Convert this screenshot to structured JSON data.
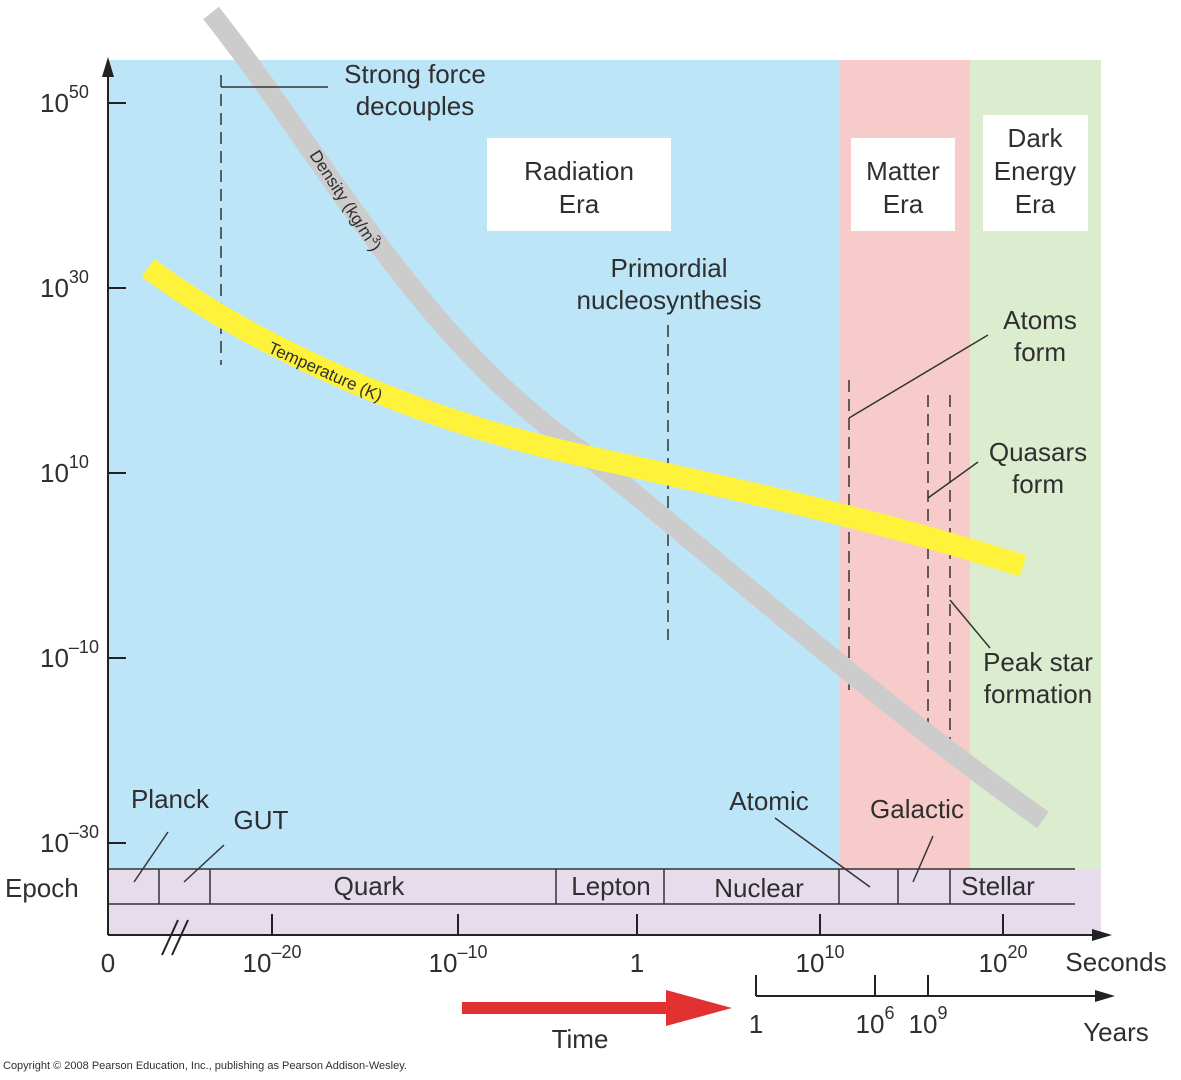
{
  "chart_data": {
    "type": "line",
    "title": "",
    "y_ticks": [
      {
        "base": "10",
        "exp": "50"
      },
      {
        "base": "10",
        "exp": "30"
      },
      {
        "base": "10",
        "exp": "10"
      },
      {
        "base": "10",
        "exp": "–10"
      },
      {
        "base": "10",
        "exp": "–30"
      }
    ],
    "x_seconds_ticks": [
      {
        "base": "0",
        "exp": ""
      },
      {
        "base": "10",
        "exp": "–20"
      },
      {
        "base": "10",
        "exp": "–10"
      },
      {
        "base": "1",
        "exp": ""
      },
      {
        "base": "10",
        "exp": "10"
      },
      {
        "base": "10",
        "exp": "20"
      }
    ],
    "x_seconds_label": "Seconds",
    "x_years_ticks": [
      {
        "base": "1",
        "exp": ""
      },
      {
        "base": "10",
        "exp": "6"
      },
      {
        "base": "10",
        "exp": "9"
      }
    ],
    "x_years_label": "Years",
    "time_label": "Time",
    "series": [
      {
        "name": "Density (kg/m3)",
        "label": "Density (kg/m",
        "label_sup": "3",
        "label_close": ")",
        "color": "#cccccc"
      },
      {
        "name": "Temperature (K)",
        "label": "Temperature (K)",
        "color": "#fff23a"
      }
    ],
    "eras": [
      {
        "lines": [
          "Radiation",
          "Era"
        ],
        "color": "#bde5f8"
      },
      {
        "lines": [
          "Matter",
          "Era"
        ],
        "color": "#f8cbcb"
      },
      {
        "lines": [
          "Dark",
          "Energy",
          "Era"
        ],
        "color": "#dbeccf"
      }
    ],
    "annotations": [
      {
        "lines": [
          "Strong force",
          "decouples"
        ]
      },
      {
        "lines": [
          "Primordial",
          "nucleosynthesis"
        ]
      },
      {
        "lines": [
          "Atoms",
          "form"
        ]
      },
      {
        "lines": [
          "Quasars",
          "form"
        ]
      },
      {
        "lines": [
          "Peak star",
          "formation"
        ]
      }
    ]
  },
  "epochs": {
    "label": "Epoch",
    "items": [
      "Planck",
      "GUT",
      "Quark",
      "Lepton",
      "Nuclear",
      "Atomic",
      "Galactic",
      "Stellar"
    ],
    "color": "#e6dcec"
  },
  "copyright": "Copyright © 2008 Pearson Education, Inc., publishing as Pearson Addison-Wesley."
}
